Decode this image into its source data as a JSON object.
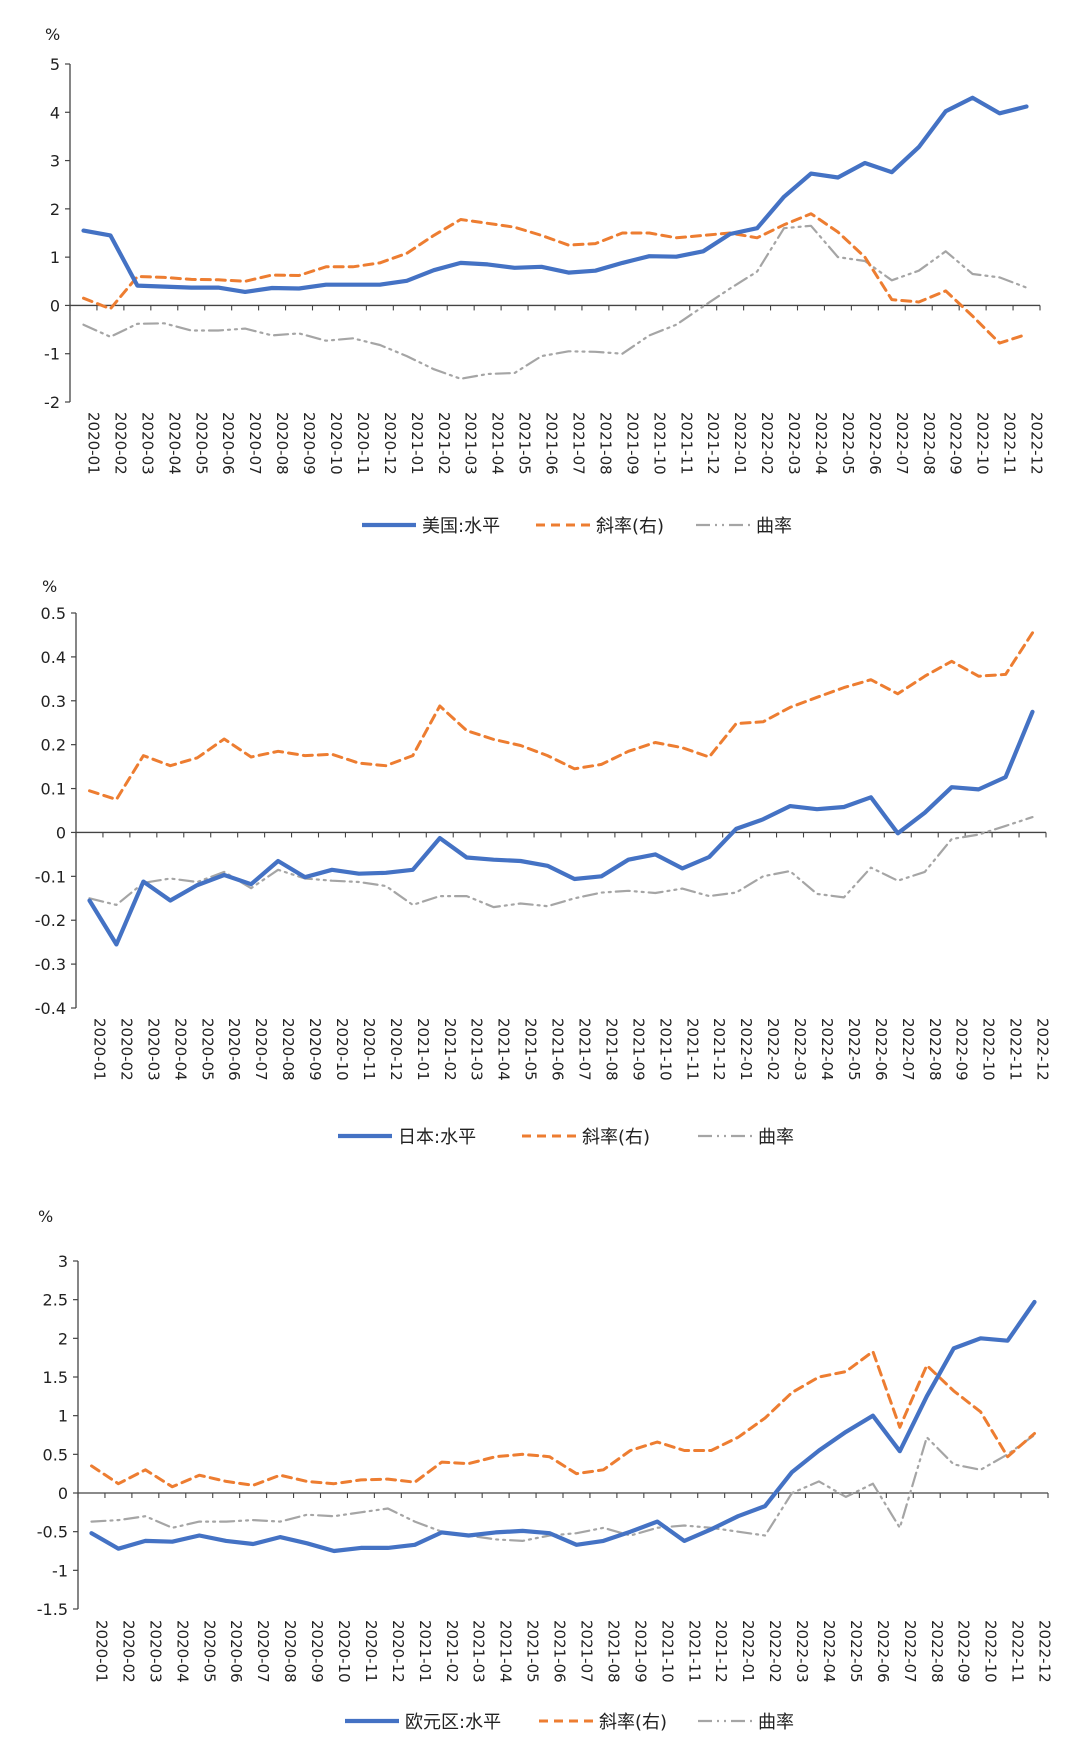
{
  "months": [
    "2020-01",
    "2020-02",
    "2020-03",
    "2020-04",
    "2020-05",
    "2020-06",
    "2020-07",
    "2020-08",
    "2020-09",
    "2020-10",
    "2020-11",
    "2020-12",
    "2021-01",
    "2021-02",
    "2021-03",
    "2021-04",
    "2021-05",
    "2021-06",
    "2021-07",
    "2021-08",
    "2021-09",
    "2021-10",
    "2021-11",
    "2021-12",
    "2022-01",
    "2022-02",
    "2022-03",
    "2022-04",
    "2022-05",
    "2022-06",
    "2022-07",
    "2022-08",
    "2022-09",
    "2022-10",
    "2022-11",
    "2022-12"
  ],
  "colors": {
    "level": "#4472C4",
    "slope": "#ED7D31",
    "curvature": "#A5A5A5"
  },
  "chart_data": [
    {
      "type": "line",
      "unit_label": "%",
      "ylim": [
        -2,
        5
      ],
      "yticks": [
        -2,
        -1,
        0,
        1,
        2,
        3,
        4,
        5
      ],
      "legend_position": "bottom",
      "series": [
        {
          "name": "美国:水平",
          "role": "level",
          "values": [
            1.55,
            1.45,
            0.41,
            0.39,
            0.37,
            0.37,
            0.28,
            0.36,
            0.35,
            0.43,
            0.43,
            0.43,
            0.51,
            0.73,
            0.88,
            0.85,
            0.78,
            0.8,
            0.68,
            0.72,
            0.88,
            1.02,
            1.01,
            1.12,
            1.48,
            1.6,
            2.25,
            2.73,
            2.65,
            2.95,
            2.76,
            3.28,
            4.02,
            4.3,
            3.98,
            4.12
          ]
        },
        {
          "name": "斜率(右)",
          "role": "slope",
          "values": [
            0.15,
            -0.07,
            0.6,
            0.58,
            0.54,
            0.53,
            0.5,
            0.63,
            0.62,
            0.8,
            0.8,
            0.88,
            1.08,
            1.45,
            1.78,
            1.7,
            1.62,
            1.45,
            1.25,
            1.28,
            1.5,
            1.5,
            1.4,
            1.45,
            1.5,
            1.4,
            1.67,
            1.9,
            1.52,
            1.0,
            0.12,
            0.07,
            0.3,
            -0.22,
            -0.78,
            -0.6
          ]
        },
        {
          "name": "曲率",
          "role": "curvature",
          "values": [
            -0.4,
            -0.65,
            -0.38,
            -0.37,
            -0.52,
            -0.52,
            -0.48,
            -0.62,
            -0.58,
            -0.73,
            -0.68,
            -0.82,
            -1.05,
            -1.32,
            -1.52,
            -1.42,
            -1.4,
            -1.05,
            -0.95,
            -0.96,
            -1.0,
            -0.62,
            -0.4,
            -0.02,
            0.35,
            0.7,
            1.6,
            1.65,
            1.0,
            0.92,
            0.52,
            0.72,
            1.12,
            0.65,
            0.58,
            0.37
          ]
        }
      ]
    },
    {
      "type": "line",
      "unit_label": "%",
      "ylim": [
        -0.4,
        0.5
      ],
      "yticks": [
        -0.4,
        -0.3,
        -0.2,
        -0.1,
        0,
        0.1,
        0.2,
        0.3,
        0.4,
        0.5
      ],
      "legend_position": "bottom",
      "series": [
        {
          "name": "日本:水平",
          "role": "level",
          "values": [
            -0.155,
            -0.255,
            -0.112,
            -0.155,
            -0.12,
            -0.097,
            -0.118,
            -0.065,
            -0.102,
            -0.085,
            -0.094,
            -0.092,
            -0.085,
            -0.013,
            -0.057,
            -0.062,
            -0.065,
            -0.076,
            -0.106,
            -0.1,
            -0.062,
            -0.05,
            -0.082,
            -0.056,
            0.008,
            0.03,
            0.06,
            0.053,
            0.058,
            0.08,
            -0.002,
            0.045,
            0.103,
            0.098,
            0.126,
            0.275
          ]
        },
        {
          "name": "斜率(右)",
          "role": "slope",
          "values": [
            0.095,
            0.075,
            0.175,
            0.152,
            0.17,
            0.213,
            0.172,
            0.185,
            0.175,
            0.178,
            0.158,
            0.152,
            0.175,
            0.288,
            0.232,
            0.212,
            0.198,
            0.175,
            0.145,
            0.155,
            0.185,
            0.205,
            0.193,
            0.172,
            0.248,
            0.252,
            0.285,
            0.308,
            0.33,
            0.348,
            0.316,
            0.356,
            0.39,
            0.356,
            0.36,
            0.455
          ]
        },
        {
          "name": "曲率",
          "role": "curvature",
          "values": [
            -0.15,
            -0.165,
            -0.115,
            -0.105,
            -0.113,
            -0.09,
            -0.127,
            -0.085,
            -0.105,
            -0.11,
            -0.113,
            -0.122,
            -0.165,
            -0.145,
            -0.145,
            -0.17,
            -0.162,
            -0.168,
            -0.15,
            -0.137,
            -0.133,
            -0.138,
            -0.128,
            -0.145,
            -0.137,
            -0.1,
            -0.088,
            -0.14,
            -0.148,
            -0.08,
            -0.11,
            -0.09,
            -0.015,
            -0.005,
            0.015,
            0.035
          ]
        }
      ]
    },
    {
      "type": "line",
      "unit_label": "%",
      "ylim": [
        -1.5,
        3
      ],
      "yticks": [
        -1.5,
        -1,
        -0.5,
        0,
        0.5,
        1,
        1.5,
        2,
        2.5,
        3
      ],
      "legend_position": "bottom",
      "series": [
        {
          "name": "欧元区:水平",
          "role": "level",
          "values": [
            -0.52,
            -0.72,
            -0.62,
            -0.63,
            -0.55,
            -0.62,
            -0.66,
            -0.57,
            -0.65,
            -0.75,
            -0.71,
            -0.71,
            -0.67,
            -0.51,
            -0.55,
            -0.51,
            -0.49,
            -0.52,
            -0.67,
            -0.62,
            -0.5,
            -0.37,
            -0.62,
            -0.47,
            -0.3,
            -0.17,
            0.27,
            0.55,
            0.79,
            1.0,
            0.54,
            1.25,
            1.87,
            2.0,
            1.97,
            2.47
          ]
        },
        {
          "name": "斜率(右)",
          "role": "slope",
          "values": [
            0.35,
            0.12,
            0.3,
            0.08,
            0.23,
            0.15,
            0.1,
            0.23,
            0.15,
            0.12,
            0.17,
            0.18,
            0.14,
            0.4,
            0.38,
            0.47,
            0.5,
            0.47,
            0.25,
            0.3,
            0.55,
            0.66,
            0.55,
            0.55,
            0.72,
            0.97,
            1.3,
            1.5,
            1.57,
            1.83,
            0.85,
            1.65,
            1.32,
            1.05,
            0.47,
            0.77
          ]
        },
        {
          "name": "曲率",
          "role": "curvature",
          "values": [
            -0.37,
            -0.35,
            -0.3,
            -0.45,
            -0.37,
            -0.37,
            -0.35,
            -0.37,
            -0.28,
            -0.3,
            -0.25,
            -0.2,
            -0.37,
            -0.5,
            -0.55,
            -0.6,
            -0.62,
            -0.55,
            -0.52,
            -0.45,
            -0.55,
            -0.45,
            -0.42,
            -0.45,
            -0.5,
            -0.55,
            0.0,
            0.15,
            -0.05,
            0.12,
            -0.45,
            0.72,
            0.37,
            0.3,
            0.5,
            0.75
          ]
        }
      ]
    }
  ]
}
